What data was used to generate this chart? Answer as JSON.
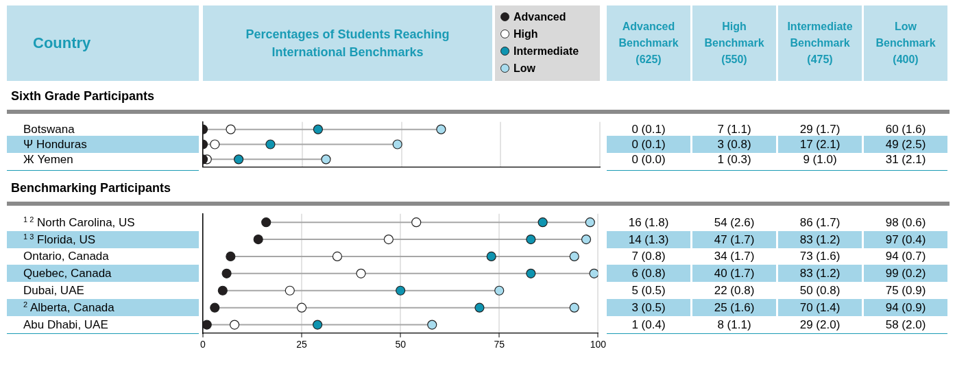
{
  "chart_data": [
    {
      "type": "scatter",
      "orientation": "horizontal",
      "title": "Percentages of Students Reaching International Benchmarks",
      "subtitle": "Sixth Grade Participants",
      "ylabel": "Country",
      "legend": "top",
      "marker": "circle",
      "grid": "x",
      "tick_labels": "y",
      "xlim": [
        0,
        100
      ],
      "xticks": [
        0,
        25,
        50,
        75,
        100
      ],
      "categories": [
        "Botswana",
        "Ψ Honduras",
        "Ж Yemen"
      ],
      "series": [
        {
          "name": "Advanced",
          "color": "#231f20",
          "values": [
            0,
            0,
            0
          ],
          "value_labels": [
            "0 (0.1)",
            "0 (0.1)",
            "0 (0.0)"
          ]
        },
        {
          "name": "High",
          "color": "#ffffff",
          "values": [
            7,
            3,
            1
          ],
          "value_labels": [
            "7 (1.1)",
            "3 (0.8)",
            "1 (0.3)"
          ]
        },
        {
          "name": "Intermediate",
          "color": "#0f94b0",
          "values": [
            29,
            17,
            9
          ],
          "value_labels": [
            "29 (1.7)",
            "17 (2.1)",
            "9 (1.0)"
          ]
        },
        {
          "name": "Low",
          "color": "#a8dcee",
          "values": [
            60,
            49,
            31
          ],
          "value_labels": [
            "60 (1.6)",
            "49 (2.5)",
            "31 (2.1)"
          ]
        }
      ],
      "annotations": [
        "Advanced Benchmark (625)",
        "High Benchmark (550)",
        "Intermediate Benchmark (475)",
        "Low Benchmark (400)"
      ]
    },
    {
      "type": "scatter",
      "orientation": "horizontal",
      "subtitle": "Benchmarking Participants",
      "marker": "circle",
      "grid": "x",
      "xlim": [
        0,
        100
      ],
      "xticks": [
        0,
        25,
        50,
        75,
        100
      ],
      "categories": [
        "$^{1 2}$ North Carolina, US",
        "$^{1 3}$ Florida, US",
        "Ontario, Canada",
        "Quebec, Canada",
        "Dubai, UAE",
        "$^{2}$ Alberta, Canada",
        "Abu Dhabi, UAE"
      ],
      "series": [
        {
          "color": "#231f20",
          "values": [
            16,
            14,
            7,
            6,
            5,
            3,
            1
          ],
          "value_labels": [
            "16 (1.8)",
            "14 (1.3)",
            "7 (0.8)",
            "6 (0.8)",
            "5 (0.5)",
            "3 (0.5)",
            "1 (0.4)"
          ]
        },
        {
          "color": "#ffffff",
          "values": [
            54,
            47,
            34,
            40,
            22,
            25,
            8
          ],
          "value_labels": [
            "54 (2.6)",
            "47 (1.7)",
            "34 (1.7)",
            "40 (1.7)",
            "22 (0.8)",
            "25 (1.6)",
            "8 (1.1)"
          ]
        },
        {
          "color": "#0f94b0",
          "values": [
            86,
            83,
            73,
            83,
            50,
            70,
            29
          ],
          "value_labels": [
            "86 (1.7)",
            "83 (1.2)",
            "73 (1.6)",
            "83 (1.2)",
            "50 (0.8)",
            "70 (1.4)",
            "29 (2.0)"
          ]
        },
        {
          "color": "#a8dcee",
          "values": [
            98,
            97,
            94,
            99,
            75,
            94,
            58
          ],
          "value_labels": [
            "98 (0.6)",
            "97 (0.4)",
            "94 (0.7)",
            "99 (0.2)",
            "75 (0.9)",
            "94 (0.9)",
            "58 (2.0)"
          ]
        }
      ]
    }
  ]
}
